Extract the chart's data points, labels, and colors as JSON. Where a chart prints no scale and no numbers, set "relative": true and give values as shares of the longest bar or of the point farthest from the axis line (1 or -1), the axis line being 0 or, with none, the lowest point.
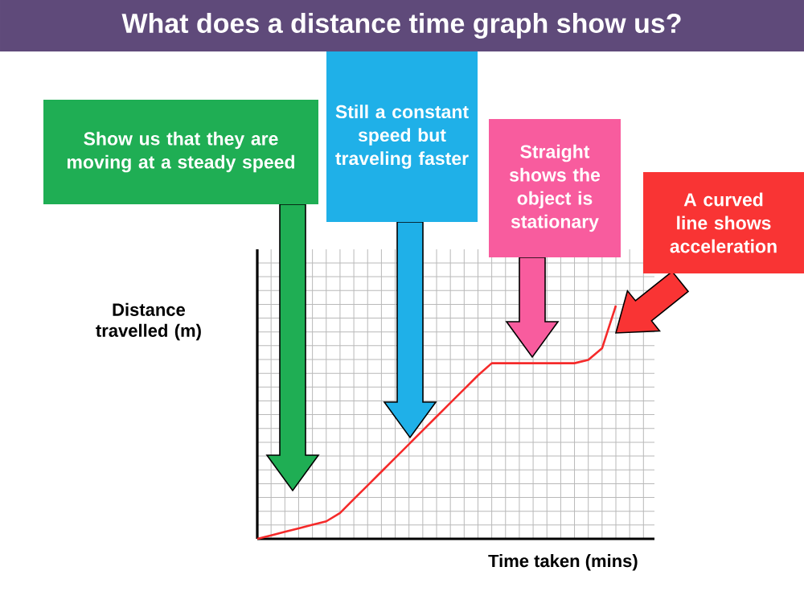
{
  "chart_data": {
    "type": "line",
    "title": "What does a distance time graph show us?",
    "xlabel": "Time taken (mins)",
    "ylabel": "Distance travelled (m)",
    "relative": true,
    "grid": true,
    "tick_labels": false,
    "marker": "none",
    "line_style": "solid",
    "categories": [
      null,
      null,
      null,
      null,
      null,
      null,
      null,
      null,
      null,
      null,
      null,
      null,
      null,
      null,
      null,
      null,
      null,
      null,
      null,
      null,
      null,
      null,
      null,
      null,
      null,
      null,
      null
    ],
    "series": [
      {
        "color": "#f52a2a",
        "values": [
          0,
          0.015,
          0.03,
          0.045,
          0.06,
          0.075,
          0.111,
          0.17,
          0.229,
          0.288,
          0.347,
          0.406,
          0.465,
          0.524,
          0.583,
          0.642,
          0.701,
          0.753,
          0.753,
          0.753,
          0.753,
          0.753,
          0.753,
          0.753,
          0.767,
          0.817,
          1.0
        ]
      }
    ],
    "annotations": [
      "Show us that they are moving at a steady speed",
      "Still a constant speed but traveling faster",
      "Straight shows the object is stationary",
      "A curved line shows acceleration"
    ]
  }
}
